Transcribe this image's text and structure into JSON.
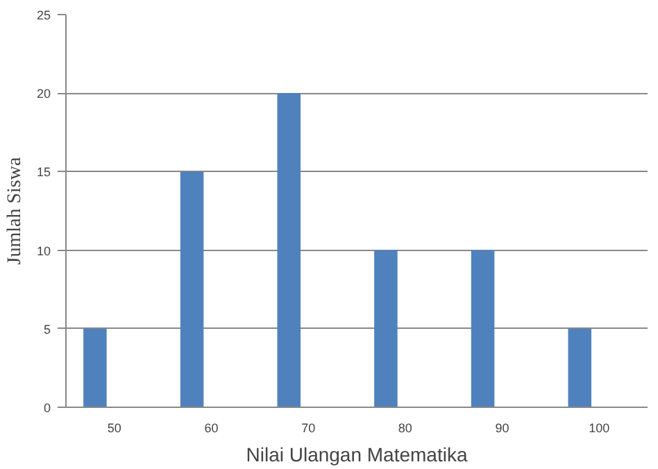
{
  "chart_data": {
    "type": "bar",
    "xlabel": "Nilai Ulangan Matematika",
    "ylabel": "Jumlah Siswa",
    "categories": [
      "50",
      "60",
      "70",
      "80",
      "90",
      "100"
    ],
    "values": [
      5,
      15,
      20,
      10,
      10,
      5
    ],
    "color": "#4f81bd",
    "ylim": [
      0,
      25
    ],
    "yticks": [
      0,
      5,
      10,
      15,
      20,
      25
    ],
    "grid": "y"
  }
}
